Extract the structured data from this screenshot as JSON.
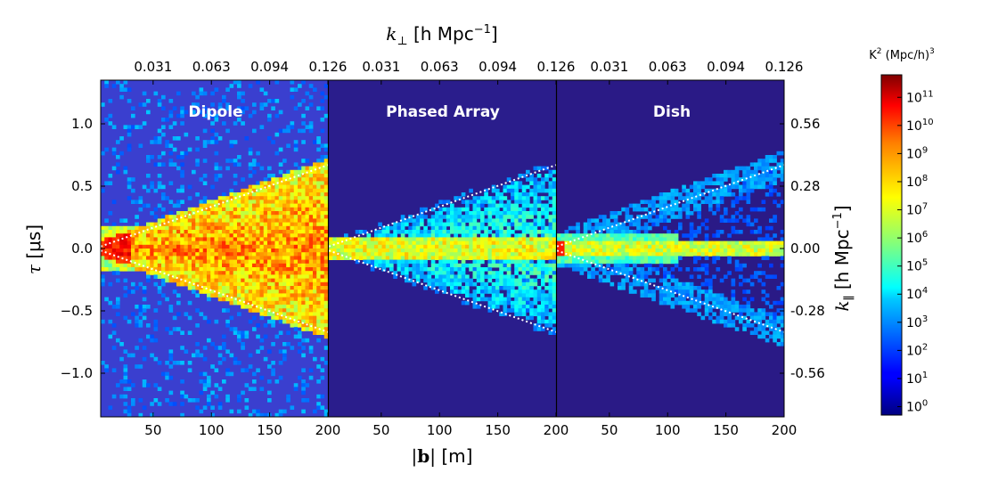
{
  "chart_data": {
    "type": "heatmap",
    "panels": [
      {
        "title": "Dipole",
        "background": "#3a3fcf",
        "wedge_spread": 1.0
      },
      {
        "title": "Phased Array",
        "background": "#2a1d8c",
        "wedge_spread": 0.55
      },
      {
        "title": "Dish",
        "background": "#2a1a86",
        "wedge_spread": 0.25
      }
    ],
    "x_axis": {
      "label_prefix": "|",
      "label_bold": "b",
      "label_suffix": "| [m]",
      "range": [
        5,
        200
      ],
      "ticks": [
        50,
        100,
        150,
        200
      ],
      "tick_labels": [
        "50",
        "100",
        "150",
        "200"
      ]
    },
    "y_axis_left": {
      "label_symbol": "τ",
      "label_units": " [μs]",
      "range": [
        -1.35,
        1.35
      ],
      "ticks": [
        -1.0,
        -0.5,
        0.0,
        0.5,
        1.0
      ],
      "tick_labels": [
        "−1.0",
        "−0.5",
        "0.0",
        "0.5",
        "1.0"
      ]
    },
    "x_axis_top": {
      "label_symbol": "k",
      "label_subscript": "⊥",
      "label_units": " [h Mpc",
      "label_exp": "−1",
      "label_close": "]",
      "ticks": [
        0.031,
        0.063,
        0.094,
        0.126
      ],
      "tick_labels": [
        "0.031",
        "0.063",
        "0.094",
        "0.126"
      ]
    },
    "y_axis_right": {
      "label_symbol": "k",
      "label_subscript": "∥",
      "label_units": " [h Mpc",
      "label_exp": "−1",
      "label_close": "]",
      "tick_values_tau": [
        1.0,
        0.5,
        0.0,
        -0.5,
        -1.0
      ],
      "tick_labels": [
        "0.56",
        "0.28",
        "0.00",
        "-0.28",
        "-0.56"
      ]
    },
    "horizon_line": {
      "description": "white dotted",
      "tau_at_200m": 0.67
    },
    "colorbar": {
      "title_base": "K",
      "title_exp1": "2",
      "title_mid": " (Mpc/h)",
      "title_exp2": "3",
      "log_range": [
        -0.3,
        11.8
      ],
      "tick_exponents": [
        0,
        1,
        2,
        3,
        4,
        5,
        6,
        7,
        8,
        9,
        10,
        11
      ],
      "tick_base": "10"
    }
  }
}
